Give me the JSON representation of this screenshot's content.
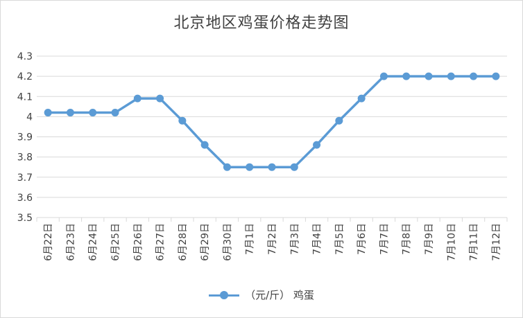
{
  "colors": {
    "series": "#5b9bd5",
    "grid": "#d9d9d9",
    "text": "#404040"
  },
  "chart_data": {
    "type": "line",
    "title": "北京地区鸡蛋价格走势图",
    "xlabel": "",
    "ylabel": "",
    "ylim": [
      3.5,
      4.3
    ],
    "yticks": [
      "3.5",
      "3.6",
      "3.7",
      "3.8",
      "3.9",
      "4",
      "4.1",
      "4.2",
      "4.3"
    ],
    "grid": true,
    "legend_position": "bottom",
    "categories": [
      "6月22日",
      "6月23日",
      "6月24日",
      "6月25日",
      "6月26日",
      "6月27日",
      "6月28日",
      "6月29日",
      "6月30日",
      "7月1日",
      "7月2日",
      "7月3日",
      "7月4日",
      "7月5日",
      "7月6日",
      "7月7日",
      "7月8日",
      "7月9日",
      "7月10日",
      "7月11日",
      "7月12日"
    ],
    "series": [
      {
        "name": "（元/斤） 鸡蛋",
        "values": [
          4.02,
          4.02,
          4.02,
          4.02,
          4.09,
          4.09,
          3.98,
          3.86,
          3.75,
          3.75,
          3.75,
          3.75,
          3.86,
          3.98,
          4.09,
          4.2,
          4.2,
          4.2,
          4.2,
          4.2,
          4.2
        ]
      }
    ]
  }
}
